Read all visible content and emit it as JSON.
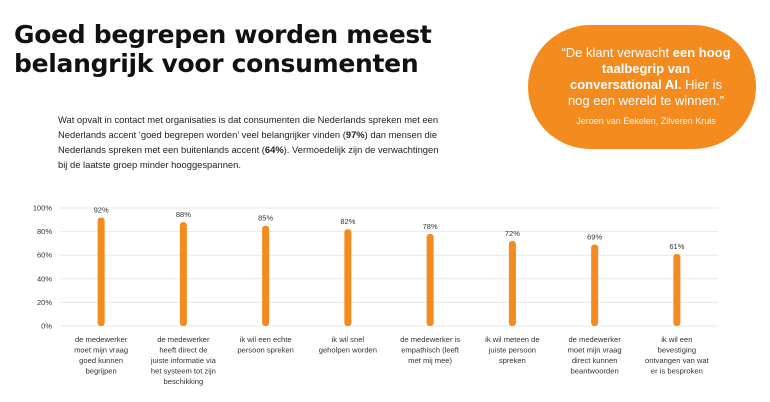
{
  "header": {
    "title_line1": "Goed begrepen worden meest",
    "title_line2": "belangrijk voor consumenten"
  },
  "intro": {
    "part1": "Wat opvalt in contact met organisaties is dat consumenten die Nederlands spreken met een Nederlands accent ‘goed begrepen worden’ veel belangrijker vinden (",
    "pct1": "97%",
    "part2": ") dan mensen die Nederlands spreken met een buitenlands accent (",
    "pct2": "64%",
    "part3": "). Vermoedelijk zijn de verwachtingen bij de laatste groep minder hooggespannen."
  },
  "quote": {
    "text_before": "“De klant verwacht ",
    "text_bold": "een hoog taalbegrip van conversational AI.",
    "text_after": " Hier is nog een wereld te winnen.”",
    "author": "Jeroen van Eekelen, Zilveren Kruis"
  },
  "colors": {
    "accent": "#f38b1f",
    "text": "#1a1a1a"
  },
  "chart_data": {
    "type": "bar",
    "title": "",
    "xlabel": "",
    "ylabel": "",
    "ylim": [
      0,
      100
    ],
    "yticks": [
      0,
      20,
      40,
      60,
      80,
      100
    ],
    "ytick_labels": [
      "0%",
      "20%",
      "40%",
      "60%",
      "80%",
      "100%"
    ],
    "grid": true,
    "categories": [
      "de medewerker moet mijn vraag goed kunnen begrijpen",
      "de medewerker heeft direct de juiste informatie via het systeem tot zijn beschikking",
      "ik wil een echte persoon spreken",
      "ik wil snel geholpen worden",
      "de medewerker is empathisch (leeft met mij mee)",
      "ik wil meteen de juiste persoon spreken",
      "de medewerker moet mijn vraag direct kunnen beantwoorden",
      "ik wil een bevestiging ontvangen van wat er is besproken"
    ],
    "category_lines": [
      [
        "de medewerker",
        "moet mijn vraag",
        "goed kunnen",
        "begrijpen"
      ],
      [
        "de medewerker",
        "heeft direct de",
        "juiste informatie via",
        "het systeem tot zijn",
        "beschikking"
      ],
      [
        "ik wil een echte",
        "persoon spreken"
      ],
      [
        "ik wil snel",
        "geholpen worden"
      ],
      [
        "de medewerker is",
        "empathisch (leeft",
        "met mij mee)"
      ],
      [
        "ik wil meteen de",
        "juiste persoon",
        "spreken"
      ],
      [
        "de medewerker",
        "moet mijn vraag",
        "direct kunnen",
        "beantwoorden"
      ],
      [
        "ik wil een",
        "bevestiging",
        "ontvangen van wat",
        "er is besproken"
      ]
    ],
    "values": [
      92,
      88,
      85,
      82,
      78,
      72,
      69,
      61
    ],
    "value_labels": [
      "92%",
      "88%",
      "85%",
      "82%",
      "78%",
      "72%",
      "69%",
      "61%"
    ]
  }
}
